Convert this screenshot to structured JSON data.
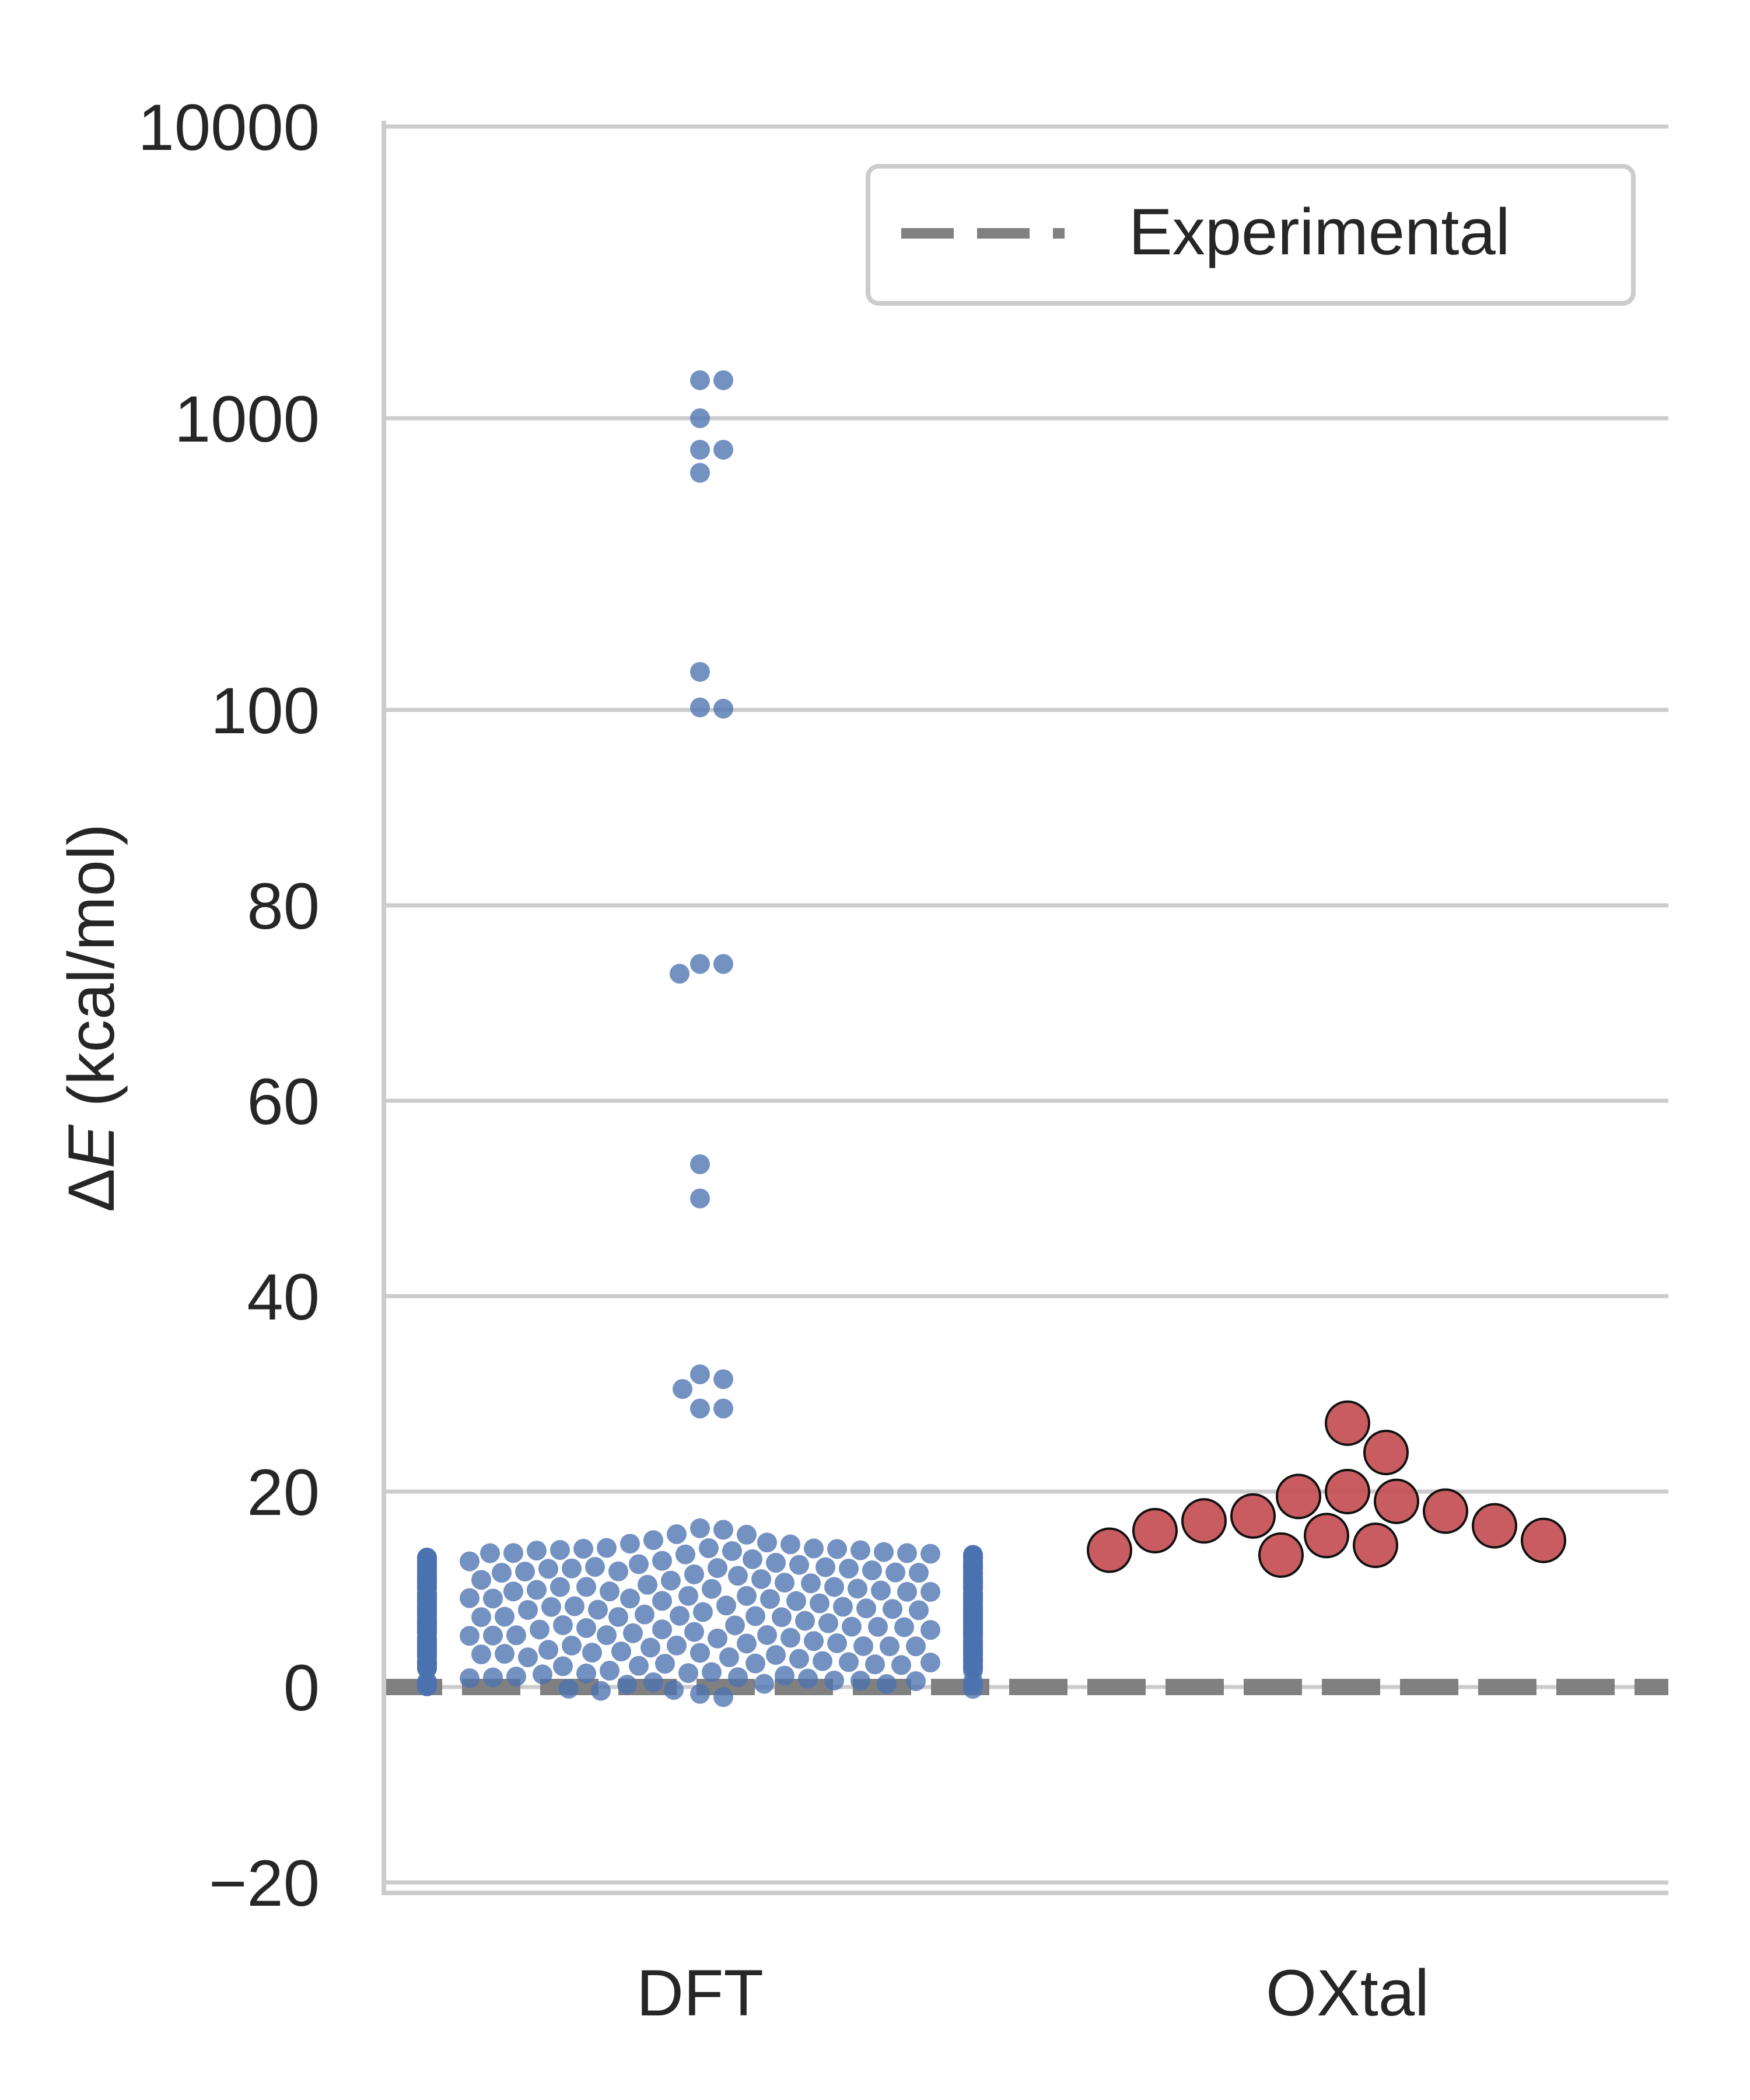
{
  "chart_data": {
    "type": "scatter",
    "subtype": "swarm",
    "ylabel_delta": "Δ",
    "ylabel_var": "E",
    "ylabel_unit": " (kcal/mol)",
    "y_scale": "symlog (linear below 100, log above 100)",
    "ylim": [
      -20,
      10000
    ],
    "y_ticks": [
      {
        "value": -20,
        "label": "−20"
      },
      {
        "value": 0,
        "label": "0"
      },
      {
        "value": 20,
        "label": "20"
      },
      {
        "value": 40,
        "label": "40"
      },
      {
        "value": 60,
        "label": "60"
      },
      {
        "value": 80,
        "label": "80"
      },
      {
        "value": 100,
        "label": "100"
      },
      {
        "value": 1000,
        "label": "1000"
      },
      {
        "value": 10000,
        "label": "10000"
      }
    ],
    "categories": [
      "DFT",
      "OXtal"
    ],
    "grid": true,
    "legend": {
      "position": "top-right",
      "entries": [
        {
          "label": "Experimental",
          "style": "dashed",
          "color": "#808080"
        }
      ]
    },
    "reference_line": {
      "y": 0,
      "label": "Experimental",
      "color": "#808080",
      "style": "dashed"
    },
    "series": [
      {
        "name": "DFT",
        "color": "#4c72b0",
        "n_points_approx": 440,
        "bulk_range": [
          -4.5,
          19.5
        ],
        "outliers": [
          1350,
          1350,
          1000,
          780,
          780,
          650,
          135,
          102,
          101,
          74,
          74,
          73,
          53.5,
          50,
          32,
          31.5,
          30.5,
          28.5,
          28.5
        ]
      },
      {
        "name": "OXtal",
        "color": "#c44e52",
        "values": [
          27,
          24,
          20,
          19.5,
          19,
          18,
          17.5,
          17,
          16.5,
          16,
          15.5,
          15,
          14.5,
          14,
          13.5
        ]
      }
    ]
  }
}
